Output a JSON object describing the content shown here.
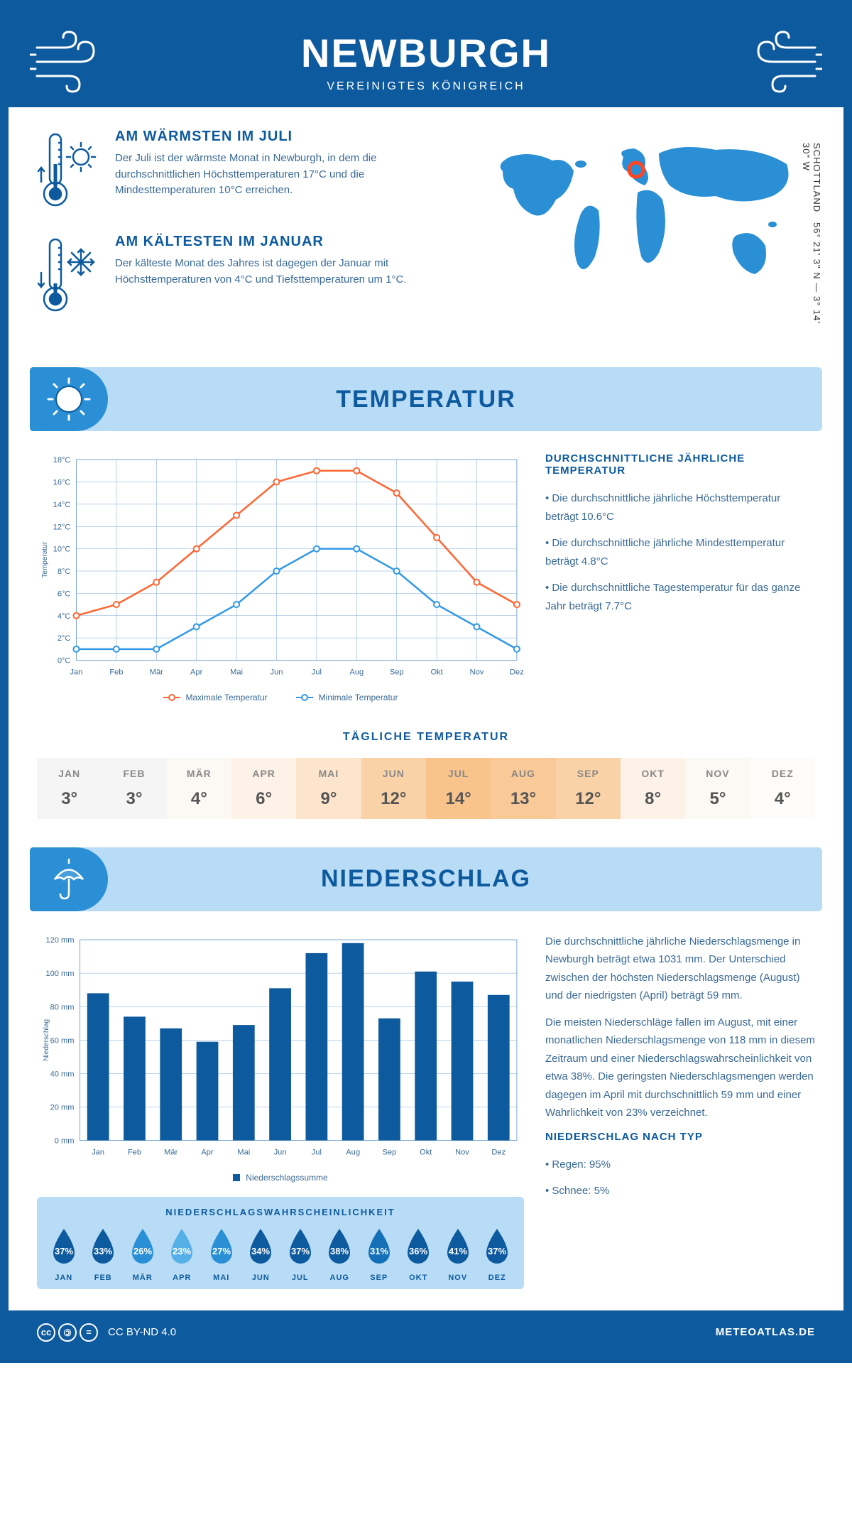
{
  "header": {
    "title": "NEWBURGH",
    "subtitle": "VEREINIGTES KÖNIGREICH"
  },
  "coords": "56° 21' 3\" N — 3° 14' 30\" W",
  "region": "SCHOTTLAND",
  "warmest": {
    "title": "AM WÄRMSTEN IM JULI",
    "text": "Der Juli ist der wärmste Monat in Newburgh, in dem die durchschnittlichen Höchsttemperaturen 17°C und die Mindesttemperaturen 10°C erreichen."
  },
  "coldest": {
    "title": "AM KÄLTESTEN IM JANUAR",
    "text": "Der kälteste Monat des Jahres ist dagegen der Januar mit Höchsttemperaturen von 4°C und Tiefsttemperaturen um 1°C."
  },
  "temp_section": {
    "title": "TEMPERATUR"
  },
  "temp_chart": {
    "type": "line",
    "months": [
      "Jan",
      "Feb",
      "Mär",
      "Apr",
      "Mai",
      "Jun",
      "Jul",
      "Aug",
      "Sep",
      "Okt",
      "Nov",
      "Dez"
    ],
    "max_values": [
      4,
      5,
      7,
      10,
      13,
      16,
      17,
      17,
      15,
      11,
      7,
      5
    ],
    "min_values": [
      1,
      1,
      1,
      3,
      5,
      8,
      10,
      10,
      8,
      5,
      3,
      1
    ],
    "max_color": "#ff6633",
    "min_color": "#3399e6",
    "grid_color": "#7aa8d0",
    "ylabel": "Temperatur",
    "ylim": [
      0,
      18
    ],
    "ytick_step": 2,
    "legend_max": "Maximale Temperatur",
    "legend_min": "Minimale Temperatur"
  },
  "temp_info": {
    "title": "DURCHSCHNITTLICHE JÄHRLICHE TEMPERATUR",
    "bullets": [
      "Die durchschnittliche jährliche Höchsttemperatur beträgt 10.6°C",
      "Die durchschnittliche jährliche Mindesttemperatur beträgt 4.8°C",
      "Die durchschnittliche Tagestemperatur für das ganze Jahr beträgt 7.7°C"
    ]
  },
  "daily_temp": {
    "title": "TÄGLICHE TEMPERATUR",
    "months": [
      "JAN",
      "FEB",
      "MÄR",
      "APR",
      "MAI",
      "JUN",
      "JUL",
      "AUG",
      "SEP",
      "OKT",
      "NOV",
      "DEZ"
    ],
    "values": [
      "3°",
      "3°",
      "4°",
      "6°",
      "9°",
      "12°",
      "14°",
      "13°",
      "12°",
      "8°",
      "5°",
      "4°"
    ],
    "bgcolors": [
      "#f5f5f5",
      "#f5f5f5",
      "#fcf8f4",
      "#fdf2e8",
      "#fce5cc",
      "#fad2a8",
      "#f8c48c",
      "#f9c998",
      "#fad2a8",
      "#fdf2e8",
      "#fcf8f4",
      "#fefcfa"
    ]
  },
  "precip_section": {
    "title": "NIEDERSCHLAG"
  },
  "precip_chart": {
    "type": "bar",
    "months": [
      "Jan",
      "Feb",
      "Mär",
      "Apr",
      "Mai",
      "Jun",
      "Jul",
      "Aug",
      "Sep",
      "Okt",
      "Nov",
      "Dez"
    ],
    "values": [
      88,
      74,
      67,
      59,
      69,
      91,
      112,
      118,
      73,
      101,
      95,
      87
    ],
    "bar_color": "#0d5a9e",
    "grid_color": "#7aa8d0",
    "ylabel": "Niederschlag",
    "ylim": [
      0,
      120
    ],
    "ytick_step": 20,
    "legend": "Niederschlagssumme"
  },
  "precip_info": {
    "p1": "Die durchschnittliche jährliche Niederschlagsmenge in Newburgh beträgt etwa 1031 mm. Der Unterschied zwischen der höchsten Niederschlagsmenge (August) und der niedrigsten (April) beträgt 59 mm.",
    "p2": "Die meisten Niederschläge fallen im August, mit einer monatlichen Niederschlagsmenge von 118 mm in diesem Zeitraum und einer Niederschlagswahrscheinlichkeit von etwa 38%. Die geringsten Niederschlagsmengen werden dagegen im April mit durchschnittlich 59 mm und einer Wahrlichkeit von 23% verzeichnet.",
    "type_title": "NIEDERSCHLAG NACH TYP",
    "types": [
      "Regen: 95%",
      "Schnee: 5%"
    ]
  },
  "precip_prob": {
    "title": "NIEDERSCHLAGSWAHRSCHEINLICHKEIT",
    "months": [
      "JAN",
      "FEB",
      "MÄR",
      "APR",
      "MAI",
      "JUN",
      "JUL",
      "AUG",
      "SEP",
      "OKT",
      "NOV",
      "DEZ"
    ],
    "values": [
      "37%",
      "33%",
      "26%",
      "23%",
      "27%",
      "34%",
      "37%",
      "38%",
      "31%",
      "36%",
      "41%",
      "37%"
    ],
    "colors": [
      "#0d5a9e",
      "#0d5a9e",
      "#2a8fd4",
      "#56b0e8",
      "#2a8fd4",
      "#0d5a9e",
      "#0d5a9e",
      "#0d5a9e",
      "#1570b8",
      "#0d5a9e",
      "#0d5a9e",
      "#0d5a9e"
    ]
  },
  "footer": {
    "license": "CC BY-ND 4.0",
    "site": "METEOATLAS.DE"
  }
}
